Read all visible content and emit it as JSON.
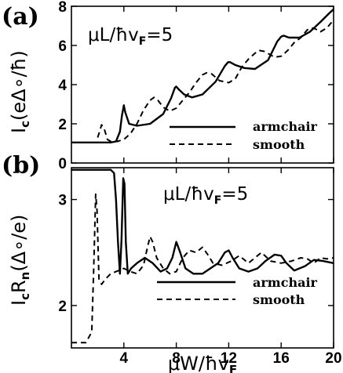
{
  "colors": {
    "line": "#000000",
    "background": "#ffffff"
  },
  "chart_data": [
    {
      "type": "line",
      "panel_label": "(a)",
      "annotation": {
        "main": "μL/ħv",
        "sub": "F",
        "value": "=5"
      },
      "ylabel": {
        "main": "I",
        "sub": "c",
        "rest": "(eΔ∘/ħ)"
      },
      "xlabel": "",
      "xlim": [
        0,
        20
      ],
      "ylim": [
        0,
        8
      ],
      "yticks": [
        0,
        2,
        4,
        6,
        8
      ],
      "xticks": [
        4,
        8,
        12,
        16,
        20
      ],
      "show_x_tick_labels": false,
      "grid": false,
      "legend_position": "bottom-right",
      "series": [
        {
          "name": "armchair",
          "dash": "solid",
          "x": [
            0,
            3.0,
            3.4,
            3.7,
            3.85,
            4.0,
            4.1,
            4.4,
            5.0,
            6.0,
            7.0,
            7.6,
            7.9,
            8.0,
            8.2,
            8.6,
            9.2,
            10.0,
            11.0,
            11.7,
            11.95,
            12.1,
            12.5,
            13.2,
            14.0,
            15.0,
            15.7,
            16.0,
            16.2,
            16.6,
            17.4,
            18.2,
            19.0,
            19.6,
            20.0
          ],
          "values": [
            1.05,
            1.05,
            1.1,
            1.6,
            2.4,
            2.95,
            2.6,
            2.0,
            1.9,
            2.0,
            2.5,
            3.3,
            3.85,
            3.9,
            3.75,
            3.5,
            3.35,
            3.5,
            4.15,
            4.95,
            5.15,
            5.15,
            5.0,
            4.85,
            4.8,
            5.25,
            6.2,
            6.45,
            6.5,
            6.4,
            6.4,
            6.7,
            7.2,
            7.6,
            7.85
          ]
        },
        {
          "name": "smooth",
          "dash": "dashed",
          "x": [
            2.0,
            2.15,
            2.3,
            2.5,
            2.75,
            3.0,
            3.5,
            4.0,
            4.5,
            5.0,
            5.5,
            6.0,
            6.3,
            6.6,
            7.0,
            7.5,
            8.0,
            8.5,
            9.0,
            9.5,
            10.0,
            10.3,
            10.7,
            11.3,
            12.0,
            12.5,
            13.0,
            13.5,
            14.0,
            14.3,
            14.7,
            15.5,
            16.0,
            16.5,
            17.0,
            17.5,
            18.0,
            18.3,
            18.6,
            19.0,
            19.5,
            20.0
          ],
          "values": [
            1.3,
            1.6,
            1.95,
            1.75,
            1.2,
            1.1,
            1.1,
            1.2,
            1.5,
            2.0,
            2.7,
            3.2,
            3.35,
            3.2,
            2.85,
            2.65,
            2.8,
            3.2,
            3.6,
            4.1,
            4.5,
            4.6,
            4.55,
            4.2,
            4.1,
            4.3,
            4.9,
            5.3,
            5.6,
            5.75,
            5.7,
            5.4,
            5.45,
            5.75,
            6.15,
            6.4,
            6.8,
            6.9,
            6.85,
            6.7,
            6.9,
            7.3
          ]
        }
      ]
    },
    {
      "type": "line",
      "panel_label": "(b)",
      "annotation": {
        "main": "μL/ħv",
        "sub": "F",
        "value": "=5"
      },
      "ylabel": {
        "main": "I",
        "sub": "c",
        "main2": "R",
        "sub2": "n",
        "rest": "(Δ∘/e)"
      },
      "xlabel": {
        "main": "μW/ħv",
        "sub": "F"
      },
      "xlim": [
        0,
        20
      ],
      "ylim": [
        1.6,
        3.3
      ],
      "yticks": [
        2,
        3
      ],
      "xticks": [
        4,
        8,
        12,
        16,
        20
      ],
      "xtick_labels": [
        "4",
        "8",
        "12",
        "16",
        "20"
      ],
      "grid": false,
      "legend_position": "bottom-right",
      "series": [
        {
          "name": "armchair",
          "dash": "solid",
          "x": [
            0,
            3.0,
            3.25,
            3.4,
            3.55,
            3.7,
            3.82,
            3.95,
            4.05,
            4.15,
            4.3,
            4.55,
            5.0,
            5.6,
            6.2,
            6.8,
            7.3,
            7.7,
            8.0,
            8.3,
            8.7,
            9.3,
            10.0,
            10.6,
            11.2,
            11.7,
            12.0,
            12.3,
            12.8,
            13.5,
            14.2,
            14.8,
            15.5,
            16.0,
            16.4,
            17.0,
            17.8,
            18.5,
            19.2,
            20.0
          ],
          "values": [
            3.28,
            3.28,
            3.25,
            3.0,
            2.6,
            2.3,
            2.62,
            3.2,
            3.15,
            2.6,
            2.3,
            2.35,
            2.4,
            2.45,
            2.4,
            2.32,
            2.35,
            2.45,
            2.6,
            2.5,
            2.35,
            2.3,
            2.3,
            2.35,
            2.4,
            2.5,
            2.52,
            2.45,
            2.35,
            2.32,
            2.35,
            2.42,
            2.48,
            2.47,
            2.4,
            2.33,
            2.37,
            2.43,
            2.42,
            2.4
          ]
        },
        {
          "name": "smooth",
          "dash": "dashed",
          "x": [
            0,
            1.1,
            1.55,
            1.7,
            1.85,
            1.95,
            2.1,
            2.3,
            2.6,
            3.0,
            3.4,
            4.0,
            4.5,
            5.0,
            5.5,
            5.8,
            6.0,
            6.2,
            6.5,
            7.0,
            7.5,
            8.0,
            8.5,
            9.0,
            9.5,
            10.0,
            10.4,
            10.8,
            11.5,
            12.2,
            12.8,
            13.5,
            14.0,
            14.5,
            15.2,
            16.0,
            16.8,
            17.5,
            18.0,
            18.5,
            19.0,
            19.5,
            20.0
          ],
          "values": [
            1.65,
            1.65,
            1.75,
            2.35,
            3.05,
            2.9,
            2.25,
            2.2,
            2.25,
            2.3,
            2.32,
            2.35,
            2.32,
            2.3,
            2.38,
            2.55,
            2.65,
            2.6,
            2.45,
            2.35,
            2.3,
            2.32,
            2.45,
            2.52,
            2.5,
            2.55,
            2.48,
            2.4,
            2.38,
            2.42,
            2.47,
            2.4,
            2.45,
            2.5,
            2.42,
            2.4,
            2.42,
            2.45,
            2.44,
            2.4,
            2.45,
            2.44,
            2.45
          ]
        }
      ]
    }
  ]
}
